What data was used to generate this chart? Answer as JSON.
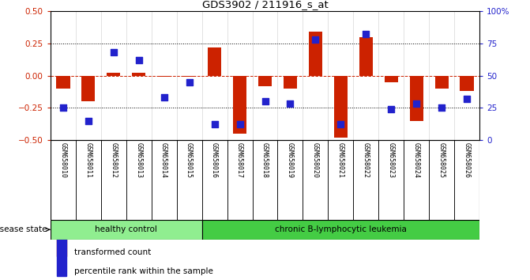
{
  "title": "GDS3902 / 211916_s_at",
  "samples": [
    "GSM658010",
    "GSM658011",
    "GSM658012",
    "GSM658013",
    "GSM658014",
    "GSM658015",
    "GSM658016",
    "GSM658017",
    "GSM658018",
    "GSM658019",
    "GSM658020",
    "GSM658021",
    "GSM658022",
    "GSM658023",
    "GSM658024",
    "GSM658025",
    "GSM658026"
  ],
  "red_bars": [
    -0.1,
    -0.2,
    0.02,
    0.02,
    -0.01,
    -0.01,
    0.22,
    -0.45,
    -0.08,
    -0.1,
    0.34,
    -0.48,
    0.3,
    -0.05,
    -0.35,
    -0.1,
    -0.12
  ],
  "blue_dots_pct": [
    25,
    15,
    68,
    62,
    33,
    45,
    12,
    12,
    30,
    28,
    78,
    12,
    82,
    24,
    28,
    25,
    32
  ],
  "n_healthy": 6,
  "n_leukemia": 11,
  "ylim": [
    -0.5,
    0.5
  ],
  "yticks_left": [
    -0.5,
    -0.25,
    0.0,
    0.25,
    0.5
  ],
  "yticks_right": [
    0,
    25,
    50,
    75,
    100
  ],
  "bar_color": "#CC2200",
  "dot_color": "#2222CC",
  "healthy_color": "#90EE90",
  "leukemia_color": "#44CC44",
  "bg_color": "#FFFFFF",
  "box_bg": "#DDDDDD",
  "zero_line_color": "#CC2200",
  "label_healthy": "healthy control",
  "label_leukemia": "chronic B-lymphocytic leukemia",
  "legend_red": "transformed count",
  "legend_blue": "percentile rank within the sample",
  "disease_label": "disease state"
}
